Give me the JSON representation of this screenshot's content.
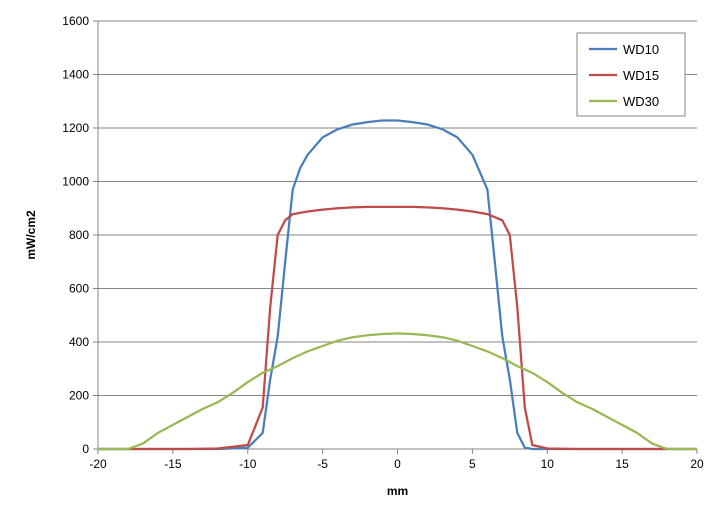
{
  "chart_data": {
    "type": "line",
    "title": "",
    "xlabel": "mm",
    "ylabel": "mW/cm2",
    "xlim": [
      -20,
      20
    ],
    "ylim": [
      0,
      1600
    ],
    "x_ticks": [
      -20,
      -15,
      -10,
      -5,
      0,
      5,
      10,
      15,
      20
    ],
    "y_ticks": [
      0,
      200,
      400,
      600,
      800,
      1000,
      1200,
      1400,
      1600
    ],
    "grid": "horizontal",
    "legend_position": "top-right",
    "series": [
      {
        "name": "WD10",
        "color": "#4a7ebb",
        "x": [
          -20,
          -18,
          -16,
          -14,
          -12,
          -10,
          -9,
          -8.5,
          -8,
          -7.5,
          -7,
          -6.5,
          -6,
          -5,
          -4,
          -3,
          -2,
          -1,
          0,
          1,
          2,
          3,
          4,
          5,
          6,
          6.5,
          7,
          7.5,
          8,
          8.5,
          9,
          10,
          12,
          14,
          16,
          18,
          20
        ],
        "values": [
          0,
          0,
          0,
          0,
          0,
          5,
          60,
          260,
          420,
          700,
          970,
          1050,
          1100,
          1165,
          1195,
          1213,
          1222,
          1228,
          1228,
          1222,
          1213,
          1195,
          1165,
          1100,
          970,
          700,
          420,
          260,
          60,
          5,
          0,
          0,
          0,
          0,
          0,
          0,
          0
        ]
      },
      {
        "name": "WD15",
        "color": "#be4b48",
        "x": [
          -20,
          -18,
          -16,
          -14,
          -12,
          -10,
          -9,
          -8.5,
          -8,
          -7.5,
          -7,
          -6,
          -5,
          -4,
          -3,
          -2,
          -1,
          0,
          1,
          2,
          3,
          4,
          5,
          6,
          7,
          7.5,
          8,
          8.5,
          9,
          10,
          12,
          14,
          16,
          18,
          20
        ],
        "values": [
          0,
          0,
          0,
          0,
          2,
          15,
          155,
          530,
          800,
          855,
          878,
          888,
          895,
          900,
          903,
          905,
          905,
          905,
          905,
          903,
          900,
          895,
          888,
          878,
          855,
          800,
          530,
          155,
          15,
          2,
          0,
          0,
          0,
          0,
          0
        ],
        "x_note": ""
      },
      {
        "name": "WD30",
        "color": "#98b954",
        "x": [
          -20,
          -18,
          -17,
          -16,
          -15,
          -14,
          -13,
          -12,
          -11,
          -10,
          -9,
          -8,
          -7,
          -6,
          -5,
          -4,
          -3,
          -2,
          -1,
          0,
          1,
          2,
          3,
          4,
          5,
          6,
          7,
          8,
          9,
          10,
          11,
          12,
          13,
          14,
          15,
          16,
          17,
          18,
          20
        ],
        "values": [
          0,
          0,
          20,
          60,
          90,
          120,
          150,
          175,
          210,
          250,
          285,
          310,
          340,
          365,
          385,
          405,
          418,
          425,
          430,
          432,
          430,
          425,
          418,
          405,
          385,
          365,
          340,
          310,
          285,
          250,
          210,
          175,
          150,
          120,
          90,
          60,
          20,
          0,
          0
        ]
      }
    ]
  }
}
